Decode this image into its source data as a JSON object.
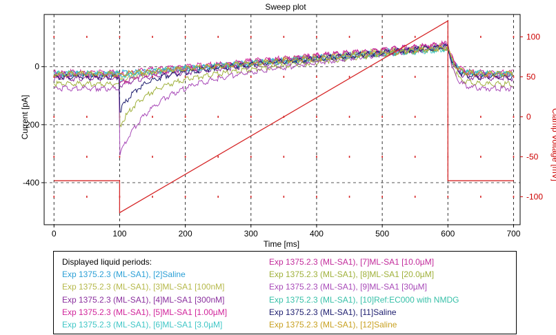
{
  "chart_data": {
    "type": "line",
    "title": "Sweep plot",
    "xlabel": "Time [ms]",
    "ylabel_left": "Current [pA]",
    "ylabel_right": "Clamp Voltage [mV]",
    "xlim": [
      -15,
      710
    ],
    "ylim_left": [
      -545,
      180
    ],
    "ylim_right": [
      -135,
      128
    ],
    "x_ticks": [
      0,
      100,
      200,
      300,
      400,
      500,
      600,
      700
    ],
    "y_ticks_left": [
      -400,
      -200,
      0
    ],
    "y_ticks_right": [
      -100,
      -50,
      0,
      50,
      100
    ],
    "grid": true,
    "colors": {
      "voltage": "#d62728",
      "grid_h": "#555555",
      "grid_v": "#333333",
      "dots": "#d62728",
      "right_axis": "#cc0000"
    },
    "voltage_trace": {
      "name": "Clamp Voltage",
      "x": [
        0,
        100,
        100,
        600,
        600,
        700
      ],
      "y": [
        -80,
        -80,
        -120,
        120,
        -80,
        -80
      ]
    },
    "series": [
      {
        "color": "#2a9fd6",
        "baseline": -20,
        "peak": -15,
        "tau": 18,
        "endI": 75
      },
      {
        "color": "#b5b84a",
        "baseline": -22,
        "peak": -45,
        "tau": 25,
        "endI": 80
      },
      {
        "color": "#8a2f9e",
        "baseline": -35,
        "peak": -60,
        "tau": 30,
        "endI": 70
      },
      {
        "color": "#d1239a",
        "baseline": -15,
        "peak": -25,
        "tau": 15,
        "endI": 82
      },
      {
        "color": "#3fc6c6",
        "baseline": -20,
        "peak": -40,
        "tau": 22,
        "endI": 65
      },
      {
        "color": "#c22a9a",
        "baseline": -25,
        "peak": -55,
        "tau": 28,
        "endI": 85
      },
      {
        "color": "#9fb03a",
        "baseline": -55,
        "peak": -200,
        "tau": 38,
        "endI": 72
      },
      {
        "color": "#a84ab8",
        "baseline": -70,
        "peak": -300,
        "tau": 48,
        "endI": 78
      },
      {
        "color": "#37c0a8",
        "baseline": -18,
        "peak": -30,
        "tau": 20,
        "endI": 68
      },
      {
        "color": "#1c1c6e",
        "baseline": -30,
        "peak": -150,
        "tau": 30,
        "endI": 74
      },
      {
        "color": "#c8a020",
        "baseline": -20,
        "peak": -20,
        "tau": 15,
        "endI": 70
      }
    ]
  },
  "legend": {
    "title": "Displayed liquid periods:",
    "left": [
      {
        "label": "Exp 1375.2.3 (ML-SA1), [2]Saline",
        "color": "#2a9fd6"
      },
      {
        "label": "Exp 1375.2.3 (ML-SA1), [3]ML-SA1 [100nM]",
        "color": "#b5b84a"
      },
      {
        "label": "Exp 1375.2.3 (ML-SA1), [4]ML-SA1 [300nM]",
        "color": "#8a2f9e"
      },
      {
        "label": "Exp 1375.2.3 (ML-SA1), [5]ML-SA1 [1.00µM]",
        "color": "#d1239a"
      },
      {
        "label": "Exp 1375.2.3 (ML-SA1), [6]ML-SA1 [3.0µM]",
        "color": "#3fc6c6"
      }
    ],
    "right": [
      {
        "label": "Exp 1375.2.3 (ML-SA1), [7]ML-SA1 [10.0µM]",
        "color": "#c22a9a"
      },
      {
        "label": "Exp 1375.2.3 (ML-SA1), [8]ML-SA1 [20.0µM]",
        "color": "#9fb03a"
      },
      {
        "label": "Exp 1375.2.3 (ML-SA1), [9]ML-SA1 [30µM]",
        "color": "#a84ab8"
      },
      {
        "label": "Exp 1375.2.3 (ML-SA1), [10]Ref:EC000 with NMDG",
        "color": "#37c0a8"
      },
      {
        "label": "Exp 1375.2.3 (ML-SA1), [11]Saline",
        "color": "#1c1c6e"
      },
      {
        "label": "Exp 1375.2.3 (ML-SA1), [12]Saline",
        "color": "#c8a020"
      }
    ]
  }
}
